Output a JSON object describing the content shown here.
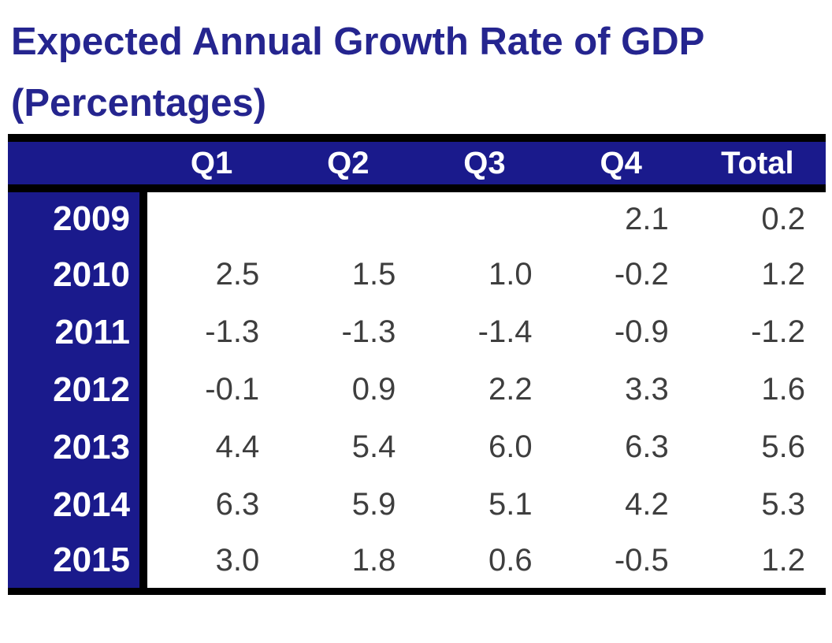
{
  "title": {
    "line1": "Expected Annual Growth Rate of GDP",
    "line2": "(Percentages)"
  },
  "table": {
    "corner_label": "",
    "columns": [
      "Q1",
      "Q2",
      "Q3",
      "Q4",
      "Total"
    ],
    "rows": [
      {
        "year": "2009",
        "values": [
          "",
          "",
          "",
          "2.1",
          "0.2"
        ]
      },
      {
        "year": "2010",
        "values": [
          "2.5",
          "1.5",
          "1.0",
          "-0.2",
          "1.2"
        ]
      },
      {
        "year": "2011",
        "values": [
          "-1.3",
          "-1.3",
          "-1.4",
          "-0.9",
          "-1.2"
        ]
      },
      {
        "year": "2012",
        "values": [
          "-0.1",
          "0.9",
          "2.2",
          "3.3",
          "1.6"
        ]
      },
      {
        "year": "2013",
        "values": [
          "4.4",
          "5.4",
          "6.0",
          "6.3",
          "5.6"
        ]
      },
      {
        "year": "2014",
        "values": [
          "6.3",
          "5.9",
          "5.1",
          "4.2",
          "5.3"
        ]
      },
      {
        "year": "2015",
        "values": [
          "3.0",
          "1.8",
          "0.6",
          "-0.5",
          "1.2"
        ]
      }
    ]
  },
  "colors": {
    "header_bg": "#1a1a8c",
    "header_text": "#ffffff",
    "title_text": "#25258f",
    "body_text": "#3e3e3e",
    "border": "#000000",
    "background": "#ffffff"
  },
  "chart_data": {
    "type": "table",
    "title": "Expected Annual Growth Rate of GDP (Percentages)",
    "columns": [
      "Q1",
      "Q2",
      "Q3",
      "Q4",
      "Total"
    ],
    "row_labels": [
      "2009",
      "2010",
      "2011",
      "2012",
      "2013",
      "2014",
      "2015"
    ],
    "rows": [
      [
        null,
        null,
        null,
        2.1,
        0.2
      ],
      [
        2.5,
        1.5,
        1.0,
        -0.2,
        1.2
      ],
      [
        -1.3,
        -1.3,
        -1.4,
        -0.9,
        -1.2
      ],
      [
        -0.1,
        0.9,
        2.2,
        3.3,
        1.6
      ],
      [
        4.4,
        5.4,
        6.0,
        6.3,
        5.6
      ],
      [
        6.3,
        5.9,
        5.1,
        4.2,
        5.3
      ],
      [
        3.0,
        1.8,
        0.6,
        -0.5,
        1.2
      ]
    ],
    "units": "percent"
  }
}
